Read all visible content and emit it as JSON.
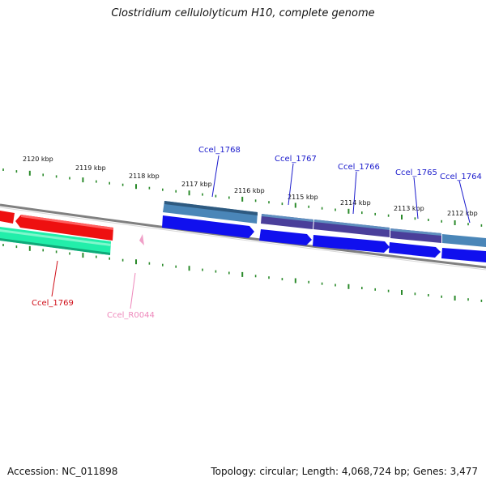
{
  "title": "Clostridium cellulolyticum H10, complete genome",
  "footer": {
    "accession": "Accession: NC_011898",
    "summary": "Topology: circular; Length: 4,068,724 bp; Genes: 3,477"
  },
  "ticks_kbp": [
    "2120 kbp",
    "2119 kbp",
    "2118 kbp",
    "2117 kbp",
    "2116 kbp",
    "2115 kbp",
    "2114 kbp",
    "2113 kbp",
    "2112 kbp"
  ],
  "genes": [
    {
      "name": "Ccel_1768",
      "color": "#1a1acc"
    },
    {
      "name": "Ccel_1767",
      "color": "#1a1acc"
    },
    {
      "name": "Ccel_1766",
      "color": "#1a1acc"
    },
    {
      "name": "Ccel_1765",
      "color": "#1a1acc"
    },
    {
      "name": "Ccel_1764",
      "color": "#1a1acc"
    },
    {
      "name": "Ccel_1769",
      "color": "#d0101a"
    },
    {
      "name": "Ccel_R0044",
      "color": "#ee88bb"
    }
  ],
  "colors": {
    "backbone": "#808080",
    "tick": "#2a8a2a",
    "cds_forward": "#1010ee",
    "cds_reverse": "#ee1010",
    "gene_top": "#4a86b8",
    "gene_dark": "#4a3f9a",
    "rna": "#22eeaa",
    "trna_marker": "#f0a0c8"
  }
}
